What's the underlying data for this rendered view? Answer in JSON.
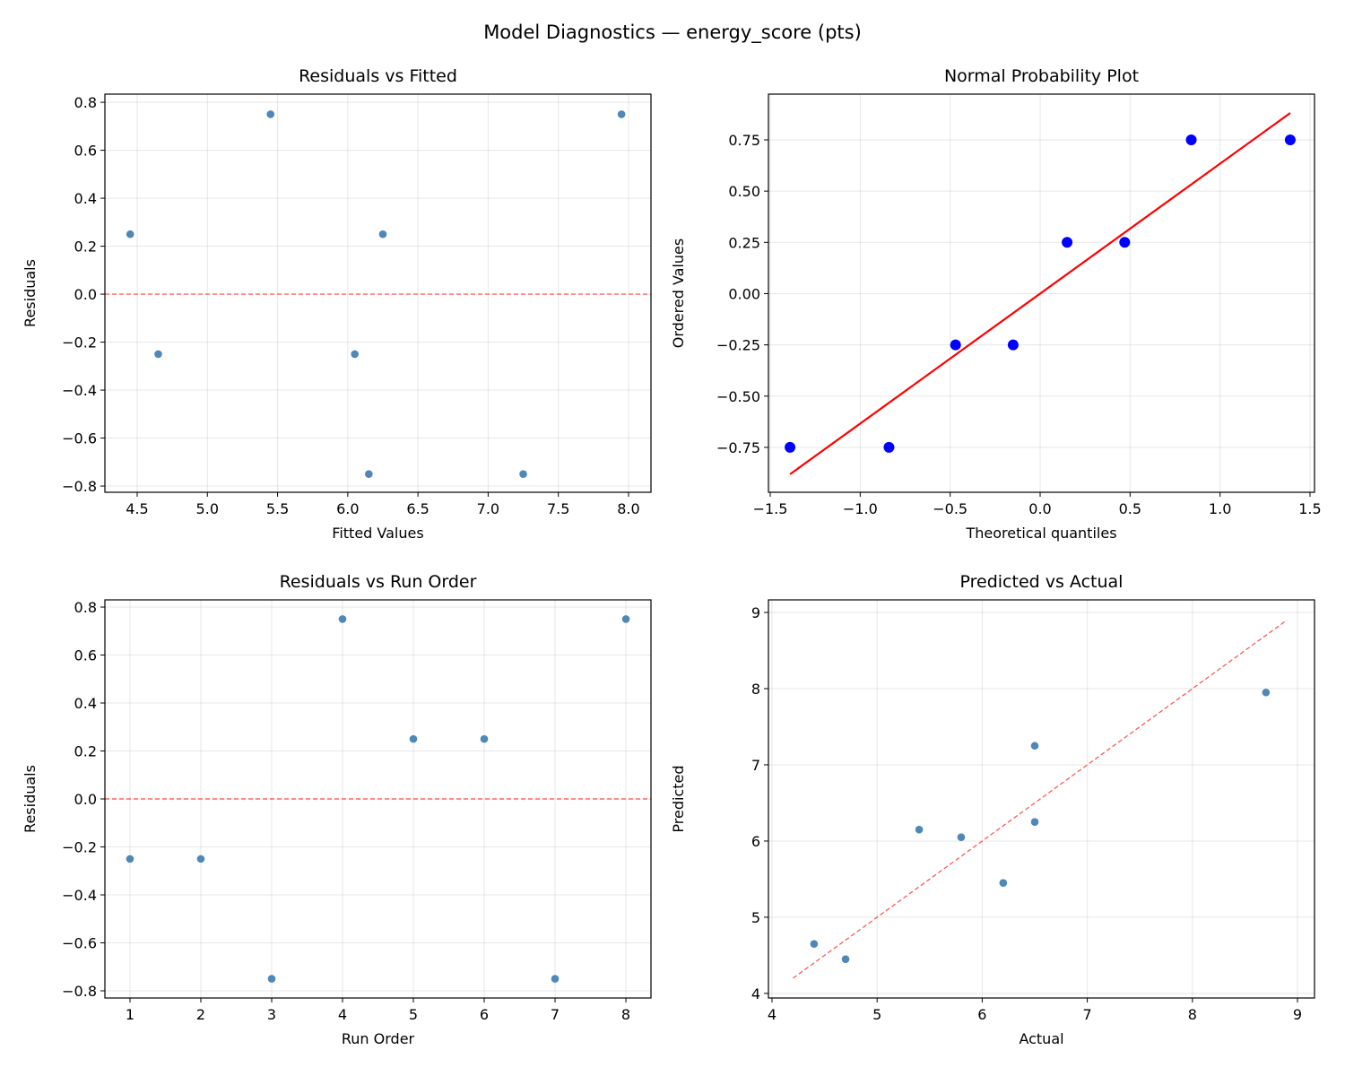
{
  "suptitle": "Model Diagnostics — energy_score (pts)",
  "chart_data": [
    {
      "type": "scatter",
      "title": "Residuals vs Fitted",
      "xlabel": "Fitted Values",
      "ylabel": "Residuals",
      "xlim": [
        4.27,
        8.16
      ],
      "ylim": [
        -0.826,
        0.834
      ],
      "xticks": [
        4.5,
        5.0,
        5.5,
        6.0,
        6.5,
        7.0,
        7.5,
        8.0
      ],
      "xtick_labels": [
        "4.5",
        "5.0",
        "5.5",
        "6.0",
        "6.5",
        "7.0",
        "7.5",
        "8.0"
      ],
      "yticks": [
        -0.8,
        -0.6,
        -0.4,
        -0.2,
        0.0,
        0.2,
        0.4,
        0.6,
        0.8
      ],
      "ytick_labels": [
        "−0.8",
        "−0.6",
        "−0.4",
        "−0.2",
        "0.0",
        "0.2",
        "0.4",
        "0.6",
        "0.8"
      ],
      "grid": true,
      "x": [
        4.45,
        4.65,
        5.45,
        6.05,
        6.15,
        6.25,
        7.25,
        7.95
      ],
      "y": [
        0.25,
        -0.25,
        0.75,
        -0.25,
        -0.75,
        0.25,
        -0.75,
        0.75
      ],
      "point_color": "#4682b4",
      "reference_line": {
        "kind": "hline",
        "y": 0,
        "color": "#ff0000",
        "style": "dashed"
      }
    },
    {
      "type": "scatter",
      "title": "Normal Probability Plot",
      "xlabel": "Theoretical quantiles",
      "ylabel": "Ordered Values",
      "xlim": [
        -1.51,
        1.525
      ],
      "ylim": [
        -0.969,
        0.973
      ],
      "xticks": [
        -1.5,
        -1.0,
        -0.5,
        0.0,
        0.5,
        1.0,
        1.5
      ],
      "xtick_labels": [
        "−1.5",
        "−1.0",
        "−0.5",
        "0.0",
        "0.5",
        "1.0",
        "1.5"
      ],
      "yticks": [
        -0.75,
        -0.5,
        -0.25,
        0.0,
        0.25,
        0.5,
        0.75
      ],
      "ytick_labels": [
        "−0.75",
        "−0.50",
        "−0.25",
        "0.00",
        "0.25",
        "0.50",
        "0.75"
      ],
      "grid": true,
      "x": [
        -1.39,
        -0.84,
        -0.47,
        -0.15,
        0.15,
        0.47,
        0.84,
        1.39
      ],
      "y": [
        -0.75,
        -0.75,
        -0.25,
        -0.25,
        0.25,
        0.25,
        0.75,
        0.75
      ],
      "point_color": "#0000ff",
      "reference_line": {
        "kind": "segment",
        "x": [
          -1.39,
          1.39
        ],
        "y": [
          -0.881,
          0.881
        ],
        "color": "#ff0000",
        "style": "solid"
      }
    },
    {
      "type": "scatter",
      "title": "Residuals vs Run Order",
      "xlabel": "Run Order",
      "ylabel": "Residuals",
      "xlim": [
        0.646,
        8.354
      ],
      "ylim": [
        -0.83,
        0.83
      ],
      "xticks": [
        1,
        2,
        3,
        4,
        5,
        6,
        7,
        8
      ],
      "xtick_labels": [
        "1",
        "2",
        "3",
        "4",
        "5",
        "6",
        "7",
        "8"
      ],
      "yticks": [
        -0.8,
        -0.6,
        -0.4,
        -0.2,
        0.0,
        0.2,
        0.4,
        0.6,
        0.8
      ],
      "ytick_labels": [
        "−0.8",
        "−0.6",
        "−0.4",
        "−0.2",
        "0.0",
        "0.2",
        "0.4",
        "0.6",
        "0.8"
      ],
      "grid": true,
      "x": [
        1,
        2,
        3,
        4,
        5,
        6,
        7,
        8
      ],
      "y": [
        -0.25,
        -0.25,
        -0.75,
        0.75,
        0.25,
        0.25,
        -0.75,
        0.75
      ],
      "point_color": "#4682b4",
      "reference_line": {
        "kind": "hline",
        "y": 0,
        "color": "#ff0000",
        "style": "dashed"
      }
    },
    {
      "type": "scatter",
      "title": "Predicted vs Actual",
      "xlabel": "Actual",
      "ylabel": "Predicted",
      "xlim": [
        3.966,
        9.162
      ],
      "ylim": [
        3.94,
        9.165
      ],
      "xticks": [
        4,
        5,
        6,
        7,
        8,
        9
      ],
      "xtick_labels": [
        "4",
        "5",
        "6",
        "7",
        "8",
        "9"
      ],
      "yticks": [
        4,
        5,
        6,
        7,
        8,
        9
      ],
      "ytick_labels": [
        "4",
        "5",
        "6",
        "7",
        "8",
        "9"
      ],
      "grid": true,
      "x": [
        4.4,
        4.7,
        5.4,
        5.8,
        6.2,
        6.5,
        6.5,
        8.7
      ],
      "y": [
        4.65,
        4.45,
        6.15,
        6.05,
        5.45,
        7.25,
        6.25,
        7.95
      ],
      "point_color": "#4682b4",
      "reference_line": {
        "kind": "segment",
        "x": [
          4.2,
          8.9
        ],
        "y": [
          4.2,
          8.9
        ],
        "color": "#ff0000",
        "style": "dashed"
      }
    }
  ]
}
